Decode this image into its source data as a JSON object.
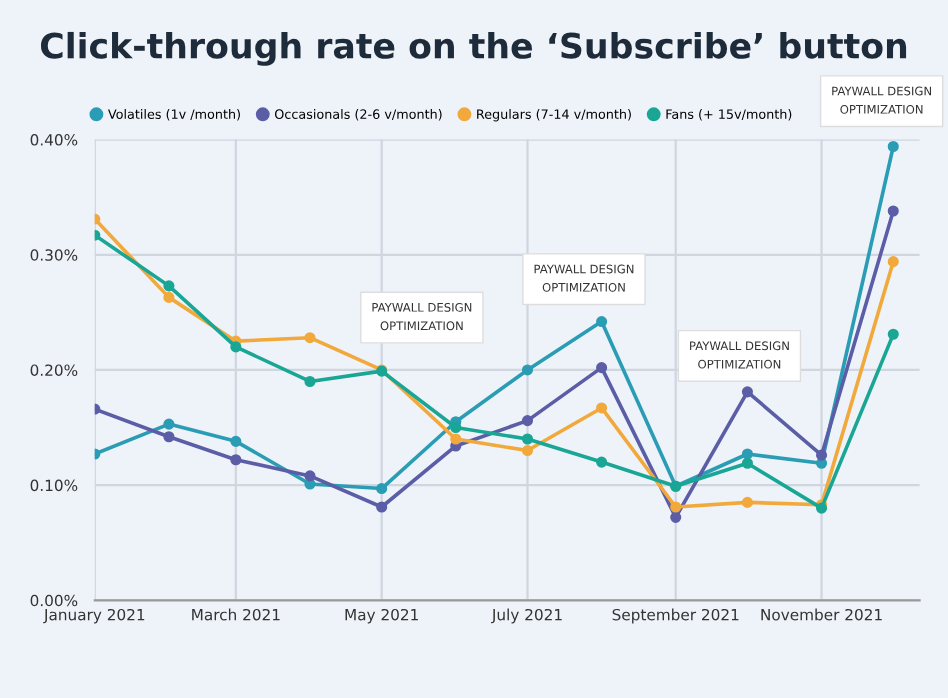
{
  "chart_data": {
    "type": "line",
    "title": "Click-through rate on the ‘Subscribe’ button",
    "x": [
      "2021-01-01",
      "2021-02-01",
      "2021-03-01",
      "2021-04-01",
      "2021-05-01",
      "2021-06-01",
      "2021-07-01",
      "2021-08-01",
      "2021-09-01",
      "2021-10-01",
      "2021-11-01",
      "2021-12-01"
    ],
    "series": [
      {
        "name": "Volatiles (1v /month)",
        "color": "#2a9db5",
        "values": [
          0.127,
          0.153,
          0.138,
          0.101,
          0.097,
          0.155,
          0.2,
          0.242,
          0.099,
          0.127,
          0.119,
          0.394
        ]
      },
      {
        "name": "Occasionals (2-6 v/month)",
        "color": "#5b5ea6",
        "values": [
          0.166,
          0.142,
          0.122,
          0.108,
          0.081,
          0.134,
          0.156,
          0.202,
          0.072,
          0.181,
          0.126,
          0.338
        ]
      },
      {
        "name": "Regulars (7-14 v/month)",
        "color": "#f2a93b",
        "values": [
          0.331,
          0.263,
          0.225,
          0.228,
          0.2,
          0.14,
          0.13,
          0.167,
          0.081,
          0.085,
          0.083,
          0.294
        ]
      },
      {
        "name": "Fans (+ 15v/month)",
        "color": "#19a695",
        "values": [
          0.317,
          0.273,
          0.22,
          0.19,
          0.199,
          0.15,
          0.14,
          0.12,
          0.099,
          0.119,
          0.08,
          0.231
        ]
      }
    ],
    "xlim": [
      "2021-01-01",
      "2021-12-12"
    ],
    "xticks": [
      {
        "value": "2021-01-01",
        "label": "January 2021"
      },
      {
        "value": "2021-03-01",
        "label": "March 2021"
      },
      {
        "value": "2021-05-01",
        "label": "May 2021"
      },
      {
        "value": "2021-07-01",
        "label": "July 2021"
      },
      {
        "value": "2021-09-01",
        "label": "September 2021"
      },
      {
        "value": "2021-11-01",
        "label": "November 2021"
      }
    ],
    "ylim": [
      0,
      0.4
    ],
    "yticks": [
      {
        "value": 0,
        "label": "0.00%"
      },
      {
        "value": 0.1,
        "label": "0.10%"
      },
      {
        "value": 0.2,
        "label": "0.20%"
      },
      {
        "value": 0.3,
        "label": "0.30%"
      },
      {
        "value": 0.4,
        "label": "0.40%"
      }
    ],
    "grid": true,
    "legend": "top",
    "marker": "circle",
    "line_style": "solid",
    "annotations": [
      "PAYWALL DESIGN\nOPTIMIZATION",
      "PAYWALL DESIGN\nOPTIMIZATION",
      "PAYWALL DESIGN\nOPTIMIZATION",
      "PAYWALL DESIGN\nOPTIMIZATION"
    ]
  }
}
